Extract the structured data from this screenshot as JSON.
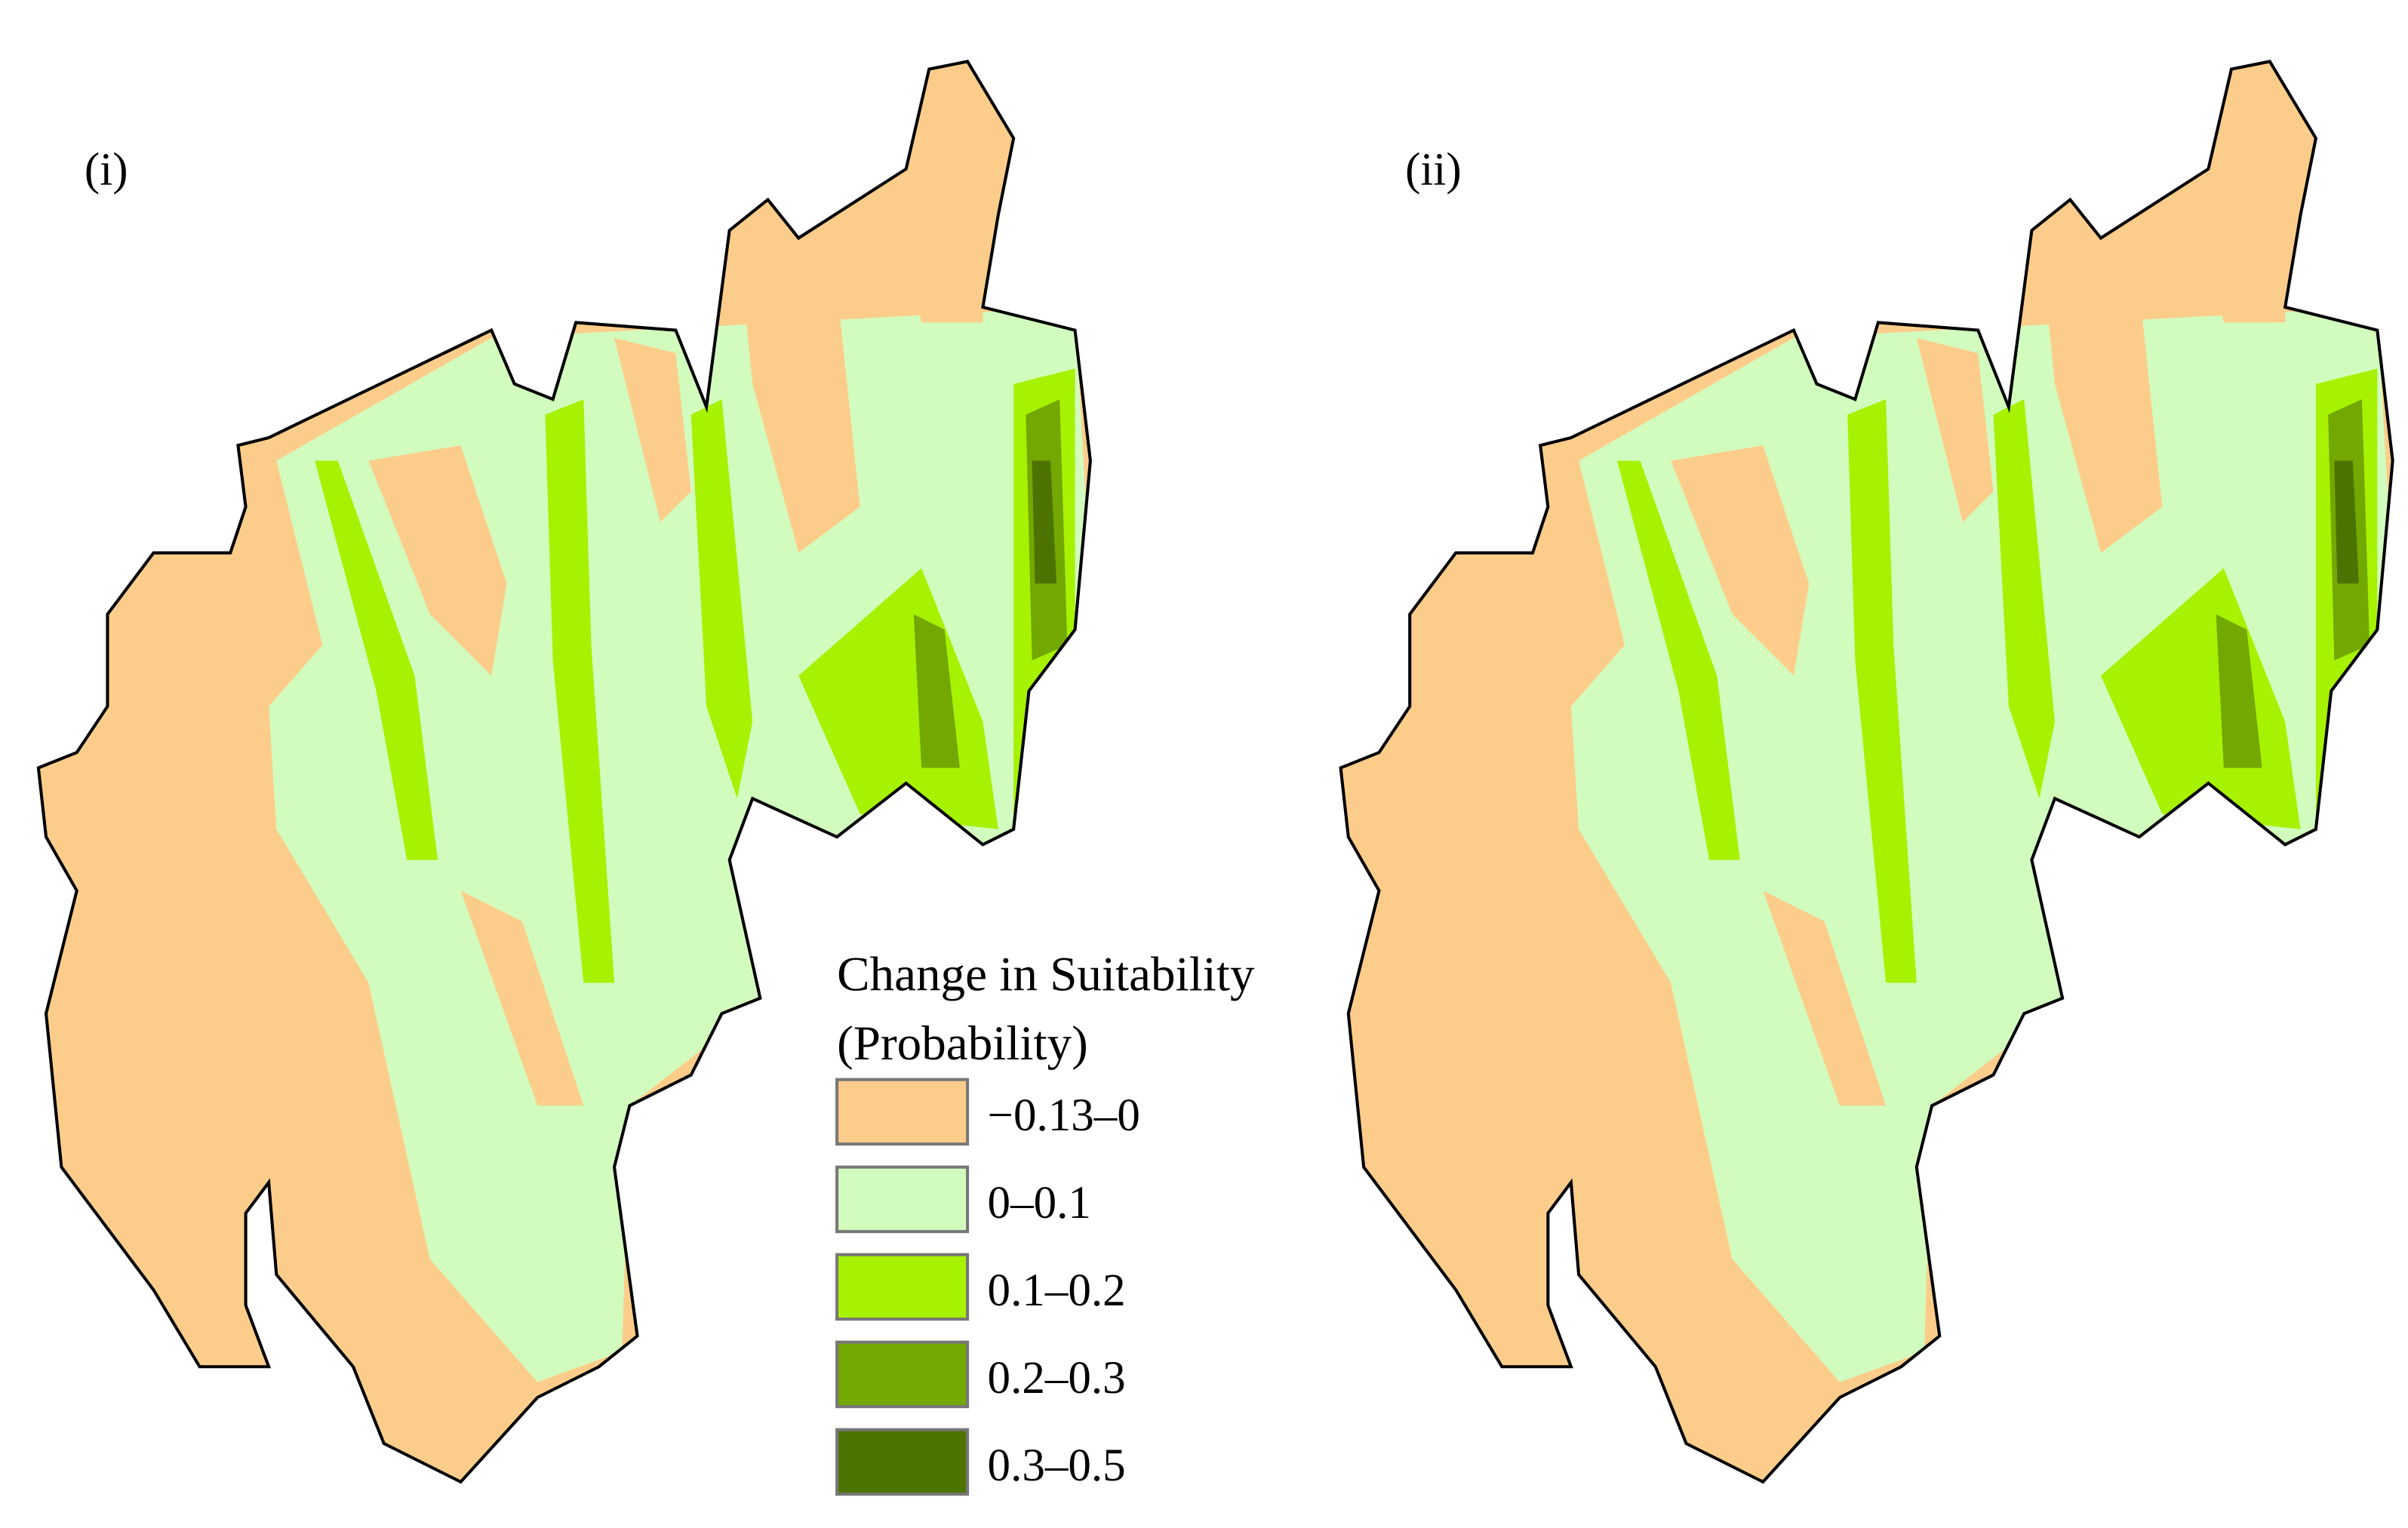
{
  "panels": [
    {
      "label": "(i)"
    },
    {
      "label": "(ii)"
    }
  ],
  "legend": {
    "title": "Change in Suitability",
    "subtitle": "(Probability)",
    "items": [
      {
        "label": "−0.13–0",
        "color": "#fccd8a"
      },
      {
        "label": "0–0.1",
        "color": "#d2fcbe"
      },
      {
        "label": "0.1–0.2",
        "color": "#a6f200"
      },
      {
        "label": "0.2–0.3",
        "color": "#72a800"
      },
      {
        "label": "0.3–0.5",
        "color": "#4c7300"
      }
    ]
  }
}
